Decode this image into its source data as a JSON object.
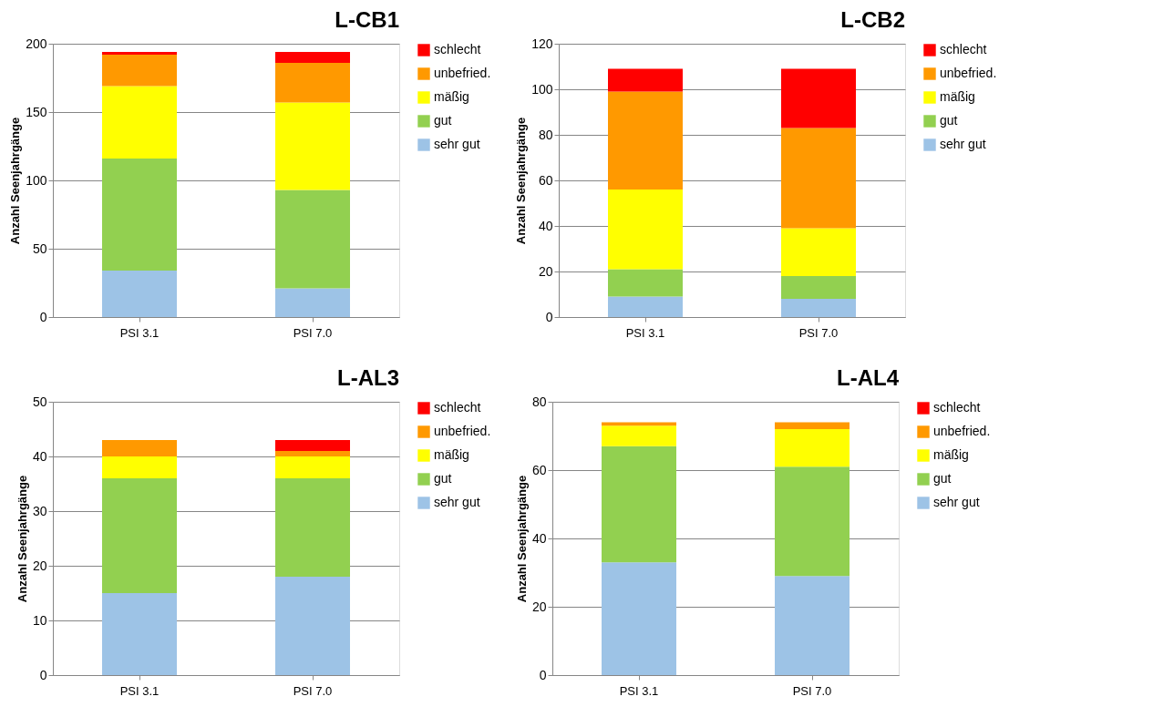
{
  "chart_data": [
    {
      "type": "bar",
      "stacked": true,
      "title": "L-CB1",
      "ylabel": "Anzahl Seenjahrgänge",
      "categories": [
        "PSI 3.1",
        "PSI 7.0"
      ],
      "ylim": [
        0,
        200
      ],
      "yticks": [
        0,
        50,
        100,
        150,
        200
      ],
      "grid": "y",
      "legend": "right",
      "series": [
        {
          "name": "sehr gut",
          "color": "#9dc3e6",
          "values": [
            34,
            21
          ]
        },
        {
          "name": "gut",
          "color": "#92d050",
          "values": [
            82,
            72
          ]
        },
        {
          "name": "mäßig",
          "color": "#ffff00",
          "values": [
            53,
            64
          ]
        },
        {
          "name": "unbefried.",
          "color": "#ff9900",
          "values": [
            23,
            29
          ]
        },
        {
          "name": "schlecht",
          "color": "#ff0000",
          "values": [
            2,
            8
          ]
        }
      ]
    },
    {
      "type": "bar",
      "stacked": true,
      "title": "L-CB2",
      "ylabel": "Anzahl Seenjahrgänge",
      "categories": [
        "PSI 3.1",
        "PSI 7.0"
      ],
      "ylim": [
        0,
        120
      ],
      "yticks": [
        0,
        20,
        40,
        60,
        80,
        100,
        120
      ],
      "grid": "y",
      "legend": "right",
      "series": [
        {
          "name": "sehr gut",
          "color": "#9dc3e6",
          "values": [
            9,
            8
          ]
        },
        {
          "name": "gut",
          "color": "#92d050",
          "values": [
            12,
            10
          ]
        },
        {
          "name": "mäßig",
          "color": "#ffff00",
          "values": [
            35,
            21
          ]
        },
        {
          "name": "unbefried.",
          "color": "#ff9900",
          "values": [
            43,
            44
          ]
        },
        {
          "name": "schlecht",
          "color": "#ff0000",
          "values": [
            10,
            26
          ]
        }
      ]
    },
    {
      "type": "bar",
      "stacked": true,
      "title": "L-AL3",
      "ylabel": "Anzahl Seenjahrgänge",
      "categories": [
        "PSI 3.1",
        "PSI 7.0"
      ],
      "ylim": [
        0,
        50
      ],
      "yticks": [
        0,
        10,
        20,
        30,
        40,
        50
      ],
      "grid": "y",
      "legend": "right",
      "series": [
        {
          "name": "sehr gut",
          "color": "#9dc3e6",
          "values": [
            15,
            18
          ]
        },
        {
          "name": "gut",
          "color": "#92d050",
          "values": [
            21,
            18
          ]
        },
        {
          "name": "mäßig",
          "color": "#ffff00",
          "values": [
            4,
            4
          ]
        },
        {
          "name": "unbefried.",
          "color": "#ff9900",
          "values": [
            3,
            1
          ]
        },
        {
          "name": "schlecht",
          "color": "#ff0000",
          "values": [
            0,
            2
          ]
        }
      ]
    },
    {
      "type": "bar",
      "stacked": true,
      "title": "L-AL4",
      "ylabel": "Anzahl Seenjahrgänge",
      "categories": [
        "PSI 3.1",
        "PSI 7.0"
      ],
      "ylim": [
        0,
        80
      ],
      "yticks": [
        0,
        20,
        40,
        60,
        80
      ],
      "grid": "y",
      "legend": "right",
      "series": [
        {
          "name": "sehr gut",
          "color": "#9dc3e6",
          "values": [
            33,
            29
          ]
        },
        {
          "name": "gut",
          "color": "#92d050",
          "values": [
            34,
            32
          ]
        },
        {
          "name": "mäßig",
          "color": "#ffff00",
          "values": [
            6,
            11
          ]
        },
        {
          "name": "unbefried.",
          "color": "#ff9900",
          "values": [
            1,
            2
          ]
        },
        {
          "name": "schlecht",
          "color": "#ff0000",
          "values": [
            0,
            0
          ]
        }
      ]
    }
  ]
}
